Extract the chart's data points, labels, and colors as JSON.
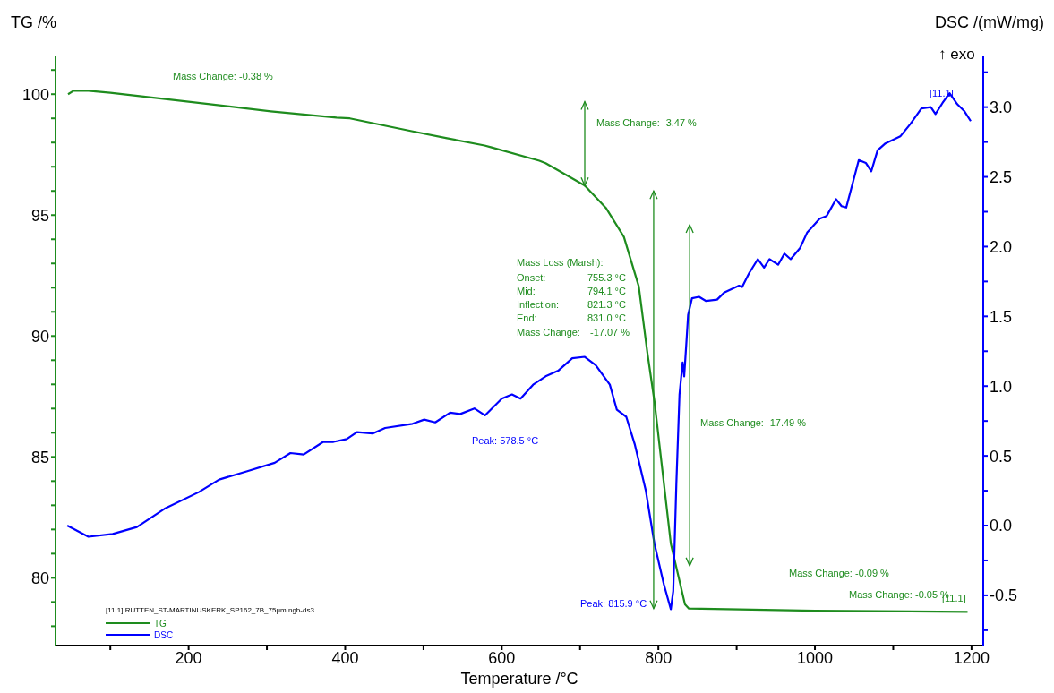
{
  "chart_data": {
    "type": "line",
    "xlabel": "Temperature /°C",
    "ylabel": "TG /%",
    "y2label": "DSC /(mW/mg)",
    "legend_title": "[11.1] RUTTEN_ST-MARTINUSKERK_SP162_7B_75µm.ngb-ds3",
    "legend": "bottom left",
    "xlim": [
      30,
      1215
    ],
    "ylim": [
      77.2,
      101.6
    ],
    "y2lim": [
      -0.86,
      3.37
    ],
    "xticks": [
      {
        "value": 100,
        "label": null
      },
      200,
      {
        "value": 300,
        "label": null
      },
      400,
      {
        "value": 500,
        "label": null
      },
      600,
      {
        "value": 700,
        "label": null
      },
      800,
      {
        "value": 900,
        "label": null
      },
      1000,
      {
        "value": 1100,
        "label": null
      },
      1200
    ],
    "yticks": [
      {
        "value": 78,
        "label": null
      },
      {
        "value": 79,
        "label": null
      },
      80,
      {
        "value": 81,
        "label": null
      },
      {
        "value": 82,
        "label": null
      },
      {
        "value": 83,
        "label": null
      },
      {
        "value": 84,
        "label": null
      },
      85,
      {
        "value": 86,
        "label": null
      },
      {
        "value": 87,
        "label": null
      },
      {
        "value": 88,
        "label": null
      },
      {
        "value": 89,
        "label": null
      },
      90,
      {
        "value": 91,
        "label": null
      },
      {
        "value": 92,
        "label": null
      },
      {
        "value": 93,
        "label": null
      },
      {
        "value": 94,
        "label": null
      },
      95,
      {
        "value": 96,
        "label": null
      },
      {
        "value": 97,
        "label": null
      },
      {
        "value": 98,
        "label": null
      },
      {
        "value": 99,
        "label": null
      },
      100,
      {
        "value": 101,
        "label": null
      }
    ],
    "y2ticks": [
      {
        "value": -0.75,
        "label": null
      },
      -0.5,
      {
        "value": -0.25,
        "label": null
      },
      {
        "value": 0,
        "label": "0.0"
      },
      {
        "value": 0.25,
        "label": null
      },
      0.5,
      {
        "value": 0.75,
        "label": null
      },
      {
        "value": 1,
        "label": "1.0"
      },
      {
        "value": 1.25,
        "label": null
      },
      1.5,
      {
        "value": 1.75,
        "label": null
      },
      {
        "value": 2,
        "label": "2.0"
      },
      {
        "value": 2.25,
        "label": null
      },
      2.5,
      {
        "value": 2.75,
        "label": null
      },
      {
        "value": 3,
        "label": "3.0"
      },
      {
        "value": 3.25,
        "label": null
      }
    ],
    "series": [
      {
        "name": "TG",
        "color": "#1e8c1e",
        "x": [
          46,
          53,
          72,
          100,
          200,
          305,
          389,
          406,
          485,
          530,
          578,
          587,
          648,
          656,
          706,
          733,
          756,
          775,
          786,
          795,
          816,
          834,
          839,
          1000,
          1195
        ],
        "values": [
          100.0,
          100.14,
          100.14,
          100.06,
          99.69,
          99.29,
          99.03,
          99.0,
          98.47,
          98.18,
          97.88,
          97.8,
          97.25,
          97.15,
          96.22,
          95.3,
          94.1,
          92.05,
          89.3,
          87.3,
          81.4,
          78.9,
          78.73,
          78.64,
          78.59
        ]
      },
      {
        "name": "DSC",
        "color": "#0000ff",
        "axis": "y2",
        "x": [
          45,
          72,
          103,
          134,
          169,
          213,
          239,
          275,
          310,
          330,
          347,
          372,
          385,
          402,
          415,
          435,
          451,
          486,
          501,
          515,
          534,
          547,
          565,
          578.5,
          600,
          613,
          624,
          640,
          656,
          672,
          690,
          706,
          720,
          738,
          747,
          759,
          770,
          784,
          795,
          807,
          815.9,
          819,
          823,
          827,
          831,
          833,
          836,
          838,
          843,
          852,
          861,
          875,
          884,
          903,
          907,
          916,
          927,
          935,
          942,
          953,
          961,
          969,
          981,
          990,
          1006,
          1015,
          1027,
          1034,
          1040,
          1056,
          1065,
          1072,
          1080,
          1090,
          1109,
          1122,
          1136,
          1148,
          1154,
          1163,
          1172,
          1182,
          1191,
          1199
        ],
        "values": [
          0.0,
          -0.08,
          -0.06,
          -0.01,
          0.12,
          0.24,
          0.33,
          0.39,
          0.45,
          0.52,
          0.51,
          0.6,
          0.6,
          0.62,
          0.67,
          0.66,
          0.7,
          0.73,
          0.76,
          0.74,
          0.81,
          0.8,
          0.84,
          0.79,
          0.91,
          0.94,
          0.91,
          1.01,
          1.07,
          1.11,
          1.2,
          1.21,
          1.15,
          1.01,
          0.83,
          0.78,
          0.58,
          0.25,
          -0.13,
          -0.42,
          -0.6,
          -0.47,
          0.3,
          0.94,
          1.17,
          1.07,
          1.33,
          1.51,
          1.63,
          1.64,
          1.61,
          1.62,
          1.67,
          1.72,
          1.71,
          1.81,
          1.91,
          1.85,
          1.91,
          1.87,
          1.95,
          1.91,
          1.99,
          2.1,
          2.2,
          2.22,
          2.34,
          2.29,
          2.28,
          2.62,
          2.6,
          2.54,
          2.69,
          2.74,
          2.79,
          2.88,
          2.99,
          3.0,
          2.95,
          3.03,
          3.1,
          3.02,
          2.97,
          2.9
        ]
      }
    ],
    "annotations": [
      "Mass Change: -0.38 %",
      "Mass Change: -3.47 %",
      "Mass Loss (Marsh):",
      "Onset:",
      "755.3 °C",
      "Mid:",
      "794.1 °C",
      "Inflection:",
      "821.3 °C",
      "End:",
      "831.0 °C",
      "Mass Change:",
      "-17.07 %",
      "Mass Change: -17.49 %",
      "Peak: 578.5 °C",
      "Peak: 815.9 °C",
      "Mass Change: -0.09 %",
      "Mass Change: -0.05 %",
      "[11.1]",
      "[11.1]",
      "↑ exo"
    ]
  }
}
